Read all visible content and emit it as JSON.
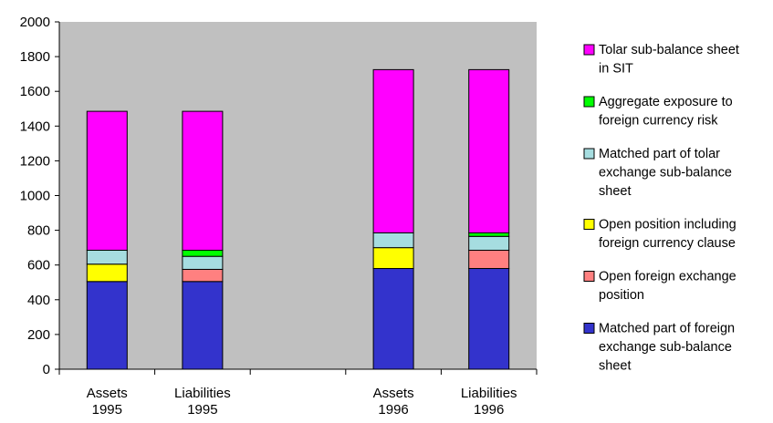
{
  "chart_data": {
    "type": "bar",
    "stacked": true,
    "plot_background": "#c0c0c0",
    "grid": false,
    "legend_position": "right",
    "title": "",
    "xlabel": "",
    "ylabel": "",
    "ylim": [
      0,
      2000
    ],
    "yticks": [
      "0",
      "200",
      "400",
      "600",
      "800",
      "1000",
      "1200",
      "1400",
      "1600",
      "1800",
      "2000"
    ],
    "slots": [
      {
        "line1": "Assets",
        "line2": "1995"
      },
      {
        "line1": "Liabilities",
        "line2": "1995"
      },
      {
        "line1": "",
        "line2": ""
      },
      {
        "line1": "Assets",
        "line2": "1996"
      },
      {
        "line1": "Liabilities",
        "line2": "1996"
      }
    ],
    "categories": [
      "Assets 1995",
      "Liabilities 1995",
      "Assets 1996",
      "Liabilities 1996"
    ],
    "series": [
      {
        "name": "Matched part of foreign exchange sub-balance sheet",
        "color": "#3333cc",
        "values": [
          505,
          505,
          580,
          580
        ]
      },
      {
        "name": "Open foreign exchange position",
        "color": "#ff8080",
        "values": [
          0,
          70,
          0,
          105
        ]
      },
      {
        "name": "Open position including foreign currency clause",
        "color": "#ffff00",
        "values": [
          100,
          0,
          120,
          0
        ]
      },
      {
        "name": "Matched part of tolar exchange sub-balance sheet",
        "color": "#a6dde0",
        "values": [
          80,
          75,
          85,
          80
        ]
      },
      {
        "name": "Aggregate exposure to foreign currency risk",
        "color": "#00ff00",
        "values": [
          0,
          35,
          0,
          20
        ]
      },
      {
        "name": "Tolar sub-balance sheet in SIT",
        "color": "#ff00ff",
        "values": [
          800,
          800,
          940,
          940
        ]
      }
    ],
    "legend": [
      {
        "series": 5,
        "lines": [
          "Tolar sub-balance sheet",
          "in SIT"
        ]
      },
      {
        "series": 4,
        "lines": [
          "Aggregate exposure to",
          "foreign currency risk"
        ]
      },
      {
        "series": 3,
        "lines": [
          "Matched part of tolar",
          "exchange sub-balance",
          "sheet"
        ]
      },
      {
        "series": 2,
        "lines": [
          "Open position including",
          "foreign currency clause"
        ]
      },
      {
        "series": 1,
        "lines": [
          "Open foreign exchange",
          "position"
        ]
      },
      {
        "series": 0,
        "lines": [
          "Matched part of foreign",
          "exchange sub-balance",
          "sheet"
        ]
      }
    ]
  }
}
